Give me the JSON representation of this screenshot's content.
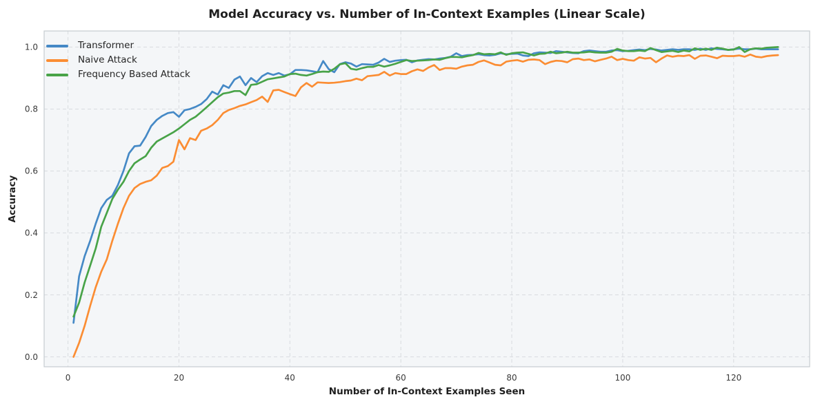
{
  "chart_data": {
    "type": "line",
    "title": "Model Accuracy vs. Number of In-Context Examples (Linear Scale)",
    "xlabel": "Number of In-Context Examples Seen",
    "ylabel": "Accuracy",
    "x_start": 1,
    "x_step": 1,
    "xlim": [
      -4.3,
      133.7
    ],
    "ylim": [
      -0.032,
      1.052
    ],
    "x_ticks": [
      0,
      20,
      40,
      60,
      80,
      100,
      120
    ],
    "x_tick_labels": [
      "0",
      "20",
      "40",
      "60",
      "80",
      "100",
      "120"
    ],
    "y_ticks": [
      0.0,
      0.2,
      0.4,
      0.6,
      0.8,
      1.0
    ],
    "y_tick_labels": [
      "0.0",
      "0.2",
      "0.4",
      "0.6",
      "0.8",
      "1.0"
    ],
    "grid": {
      "style": "dashed",
      "on": true
    },
    "legend_position": "upper-left",
    "series": [
      {
        "name": "Transformer",
        "color": "#4589c6",
        "values": [
          0.11,
          0.26,
          0.325,
          0.375,
          0.43,
          0.48,
          0.507,
          0.52,
          0.555,
          0.6,
          0.657,
          0.68,
          0.682,
          0.71,
          0.745,
          0.765,
          0.778,
          0.787,
          0.79,
          0.775,
          0.796,
          0.8,
          0.807,
          0.816,
          0.832,
          0.856,
          0.847,
          0.877,
          0.868,
          0.895,
          0.905,
          0.877,
          0.9,
          0.887,
          0.906,
          0.916,
          0.91,
          0.916,
          0.908,
          0.912,
          0.926,
          0.926,
          0.925,
          0.922,
          0.919,
          0.955,
          0.929,
          0.919,
          0.945,
          0.951,
          0.947,
          0.937,
          0.945,
          0.944,
          0.943,
          0.95,
          0.962,
          0.952,
          0.956,
          0.958,
          0.959,
          0.951,
          0.957,
          0.959,
          0.961,
          0.96,
          0.963,
          0.965,
          0.969,
          0.98,
          0.971,
          0.974,
          0.975,
          0.977,
          0.974,
          0.973,
          0.975,
          0.98,
          0.977,
          0.978,
          0.979,
          0.973,
          0.971,
          0.98,
          0.983,
          0.982,
          0.981,
          0.987,
          0.985,
          0.983,
          0.981,
          0.98,
          0.987,
          0.989,
          0.987,
          0.985,
          0.985,
          0.989,
          0.99,
          0.987,
          0.988,
          0.99,
          0.992,
          0.99,
          0.994,
          0.992,
          0.989,
          0.991,
          0.993,
          0.991,
          0.993,
          0.993,
          0.991,
          0.995,
          0.991,
          0.996,
          0.994,
          0.993,
          0.991,
          0.993,
          0.995,
          0.993,
          0.993,
          0.995,
          0.993,
          0.993,
          0.993,
          0.993
        ]
      },
      {
        "name": "Naive Attack",
        "color": "#fb8d33",
        "values": [
          0.0,
          0.045,
          0.1,
          0.165,
          0.225,
          0.275,
          0.315,
          0.375,
          0.43,
          0.48,
          0.52,
          0.545,
          0.558,
          0.565,
          0.57,
          0.585,
          0.61,
          0.616,
          0.63,
          0.7,
          0.67,
          0.706,
          0.7,
          0.73,
          0.737,
          0.748,
          0.765,
          0.787,
          0.797,
          0.803,
          0.81,
          0.815,
          0.822,
          0.829,
          0.84,
          0.823,
          0.86,
          0.862,
          0.855,
          0.848,
          0.842,
          0.87,
          0.884,
          0.872,
          0.886,
          0.885,
          0.884,
          0.885,
          0.887,
          0.89,
          0.892,
          0.898,
          0.893,
          0.906,
          0.908,
          0.91,
          0.92,
          0.908,
          0.916,
          0.913,
          0.913,
          0.922,
          0.928,
          0.923,
          0.934,
          0.942,
          0.926,
          0.932,
          0.932,
          0.93,
          0.937,
          0.941,
          0.943,
          0.952,
          0.957,
          0.95,
          0.943,
          0.941,
          0.953,
          0.956,
          0.958,
          0.953,
          0.959,
          0.96,
          0.958,
          0.945,
          0.952,
          0.956,
          0.955,
          0.951,
          0.961,
          0.963,
          0.958,
          0.96,
          0.954,
          0.959,
          0.963,
          0.969,
          0.958,
          0.962,
          0.958,
          0.956,
          0.967,
          0.963,
          0.965,
          0.951,
          0.963,
          0.973,
          0.969,
          0.972,
          0.971,
          0.974,
          0.962,
          0.972,
          0.973,
          0.969,
          0.964,
          0.972,
          0.971,
          0.971,
          0.973,
          0.969,
          0.976,
          0.969,
          0.967,
          0.971,
          0.973,
          0.974
        ]
      },
      {
        "name": "Frequency Based Attack",
        "color": "#48a348",
        "values": [
          0.13,
          0.175,
          0.24,
          0.295,
          0.35,
          0.42,
          0.465,
          0.51,
          0.54,
          0.565,
          0.6,
          0.625,
          0.637,
          0.648,
          0.675,
          0.695,
          0.705,
          0.715,
          0.725,
          0.737,
          0.751,
          0.765,
          0.775,
          0.79,
          0.806,
          0.822,
          0.838,
          0.85,
          0.853,
          0.858,
          0.858,
          0.845,
          0.878,
          0.88,
          0.888,
          0.896,
          0.899,
          0.902,
          0.905,
          0.913,
          0.914,
          0.91,
          0.908,
          0.913,
          0.919,
          0.921,
          0.92,
          0.93,
          0.944,
          0.948,
          0.93,
          0.927,
          0.932,
          0.936,
          0.936,
          0.942,
          0.937,
          0.941,
          0.946,
          0.952,
          0.958,
          0.955,
          0.956,
          0.957,
          0.958,
          0.96,
          0.959,
          0.964,
          0.968,
          0.968,
          0.967,
          0.971,
          0.974,
          0.981,
          0.977,
          0.978,
          0.977,
          0.983,
          0.975,
          0.98,
          0.982,
          0.983,
          0.978,
          0.973,
          0.978,
          0.979,
          0.985,
          0.98,
          0.982,
          0.985,
          0.982,
          0.982,
          0.983,
          0.985,
          0.983,
          0.982,
          0.982,
          0.985,
          0.994,
          0.989,
          0.987,
          0.987,
          0.989,
          0.987,
          0.997,
          0.99,
          0.984,
          0.986,
          0.988,
          0.984,
          0.989,
          0.986,
          0.996,
          0.991,
          0.995,
          0.991,
          0.998,
          0.995,
          0.991,
          0.992,
          1.0,
          0.984,
          0.993,
          0.996,
          0.995,
          0.998,
          0.999,
          1.0
        ]
      }
    ]
  },
  "style": {
    "figure_bg": "#ffffff",
    "plot_bg": "#f4f6f8",
    "grid_color": "#d8dbdf",
    "frame_color": "#c6cbd0",
    "tick_color": "#3a3a3a",
    "text_color": "#1f1f1f",
    "line_width": 2.7
  }
}
